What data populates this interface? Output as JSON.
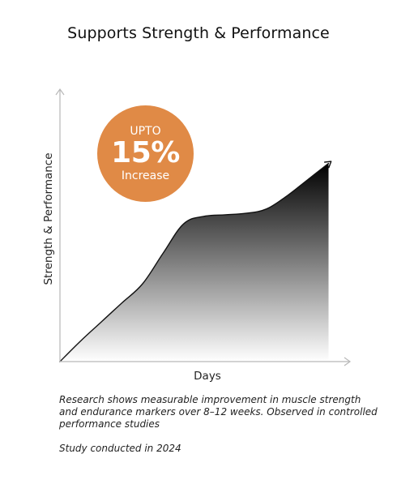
{
  "colors": {
    "badge": "#E08A46",
    "axis": "#b8b8b8",
    "curve": "#111111",
    "fill_top": "#000000",
    "fill_bottom": "#ffffff"
  },
  "chart_data": {
    "type": "area",
    "title": "Supports Strength & Performance",
    "xlabel": "Days",
    "ylabel": "Strength & Performance",
    "grid": false,
    "legend": "none",
    "x": [
      0,
      1,
      2,
      3,
      4,
      5,
      6,
      7,
      8,
      9,
      10,
      11,
      12,
      13
    ],
    "values": [
      0,
      14,
      27,
      40,
      53,
      74,
      94,
      99,
      100,
      101,
      104,
      113,
      124,
      135
    ],
    "xlim": [
      0,
      14
    ],
    "ylim": [
      0,
      185
    ],
    "annotation": {
      "line1": "UPTO",
      "line2": "15%",
      "line3": "Increase"
    }
  },
  "footnote": "Research shows measurable improvement in muscle strength and endurance markers over 8–12 weeks. Observed in controlled performance studies",
  "study_note": "Study conducted in 2024"
}
